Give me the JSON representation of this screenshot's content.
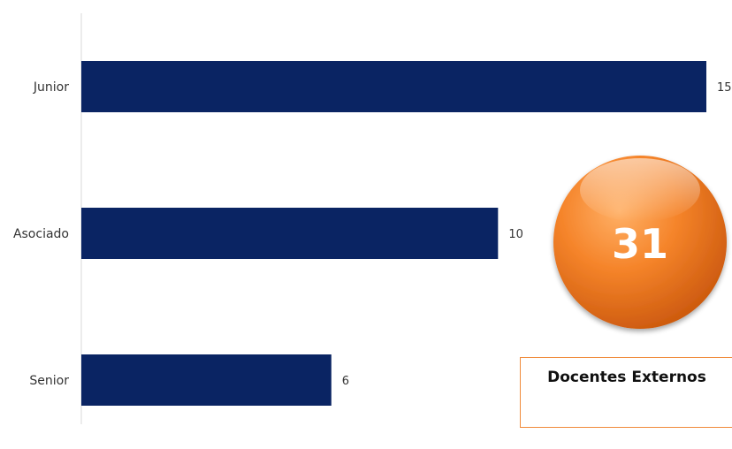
{
  "chart_data": {
    "type": "bar",
    "orientation": "horizontal",
    "categories": [
      "Junior",
      "Asociado",
      "Senior"
    ],
    "values": [
      15,
      10,
      6
    ],
    "title": "",
    "xlabel": "",
    "ylabel": "",
    "xlim": [
      0,
      15
    ],
    "grid": false,
    "legend": "none",
    "bar_color": "#0a2463"
  },
  "badge": {
    "value": "31",
    "color": "#f07b22"
  },
  "caption": {
    "label": "Docentes Externos",
    "border_color": "#f08a3a"
  }
}
